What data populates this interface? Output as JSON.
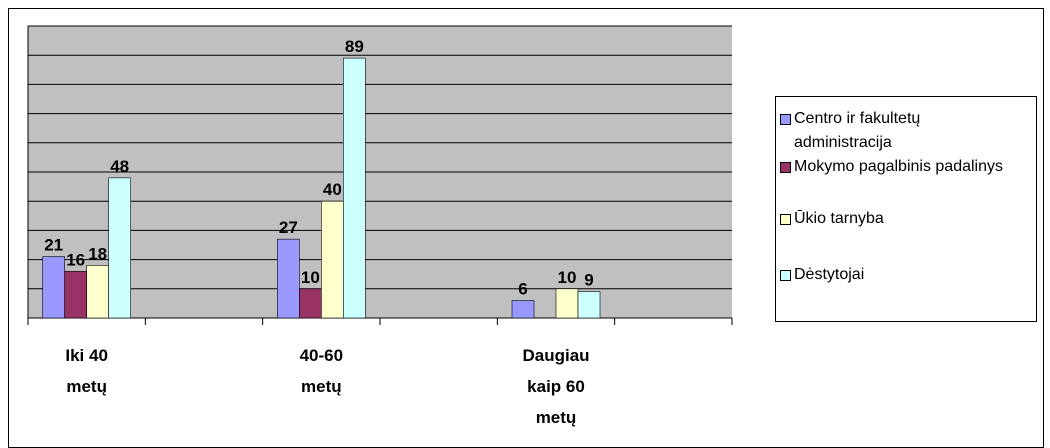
{
  "chart_data": {
    "type": "bar",
    "categories": [
      "Iki 40 metų",
      null,
      "40-60 metų",
      null,
      "Daugiau kaip 60 metų",
      null
    ],
    "series": [
      {
        "name": "Centro ir fakultetų administracija",
        "color": "#9999ff",
        "values": [
          21,
          null,
          27,
          null,
          6,
          null
        ]
      },
      {
        "name": "Mokymo pagalbinis padalinys",
        "color": "#993366",
        "values": [
          16,
          null,
          10,
          null,
          null,
          null
        ]
      },
      {
        "name": "Ūkio tarnyba",
        "color": "#ffffcc",
        "values": [
          18,
          null,
          40,
          null,
          10,
          null
        ]
      },
      {
        "name": "Dėstytojai",
        "color": "#ccffff",
        "values": [
          48,
          null,
          89,
          null,
          9,
          null
        ]
      }
    ],
    "ylim": [
      0,
      100
    ],
    "yticks": [
      0,
      10,
      20,
      30,
      40,
      50,
      60,
      70,
      80,
      90,
      100
    ],
    "grid": true,
    "legend": "right",
    "background": "#c0c0c0"
  }
}
